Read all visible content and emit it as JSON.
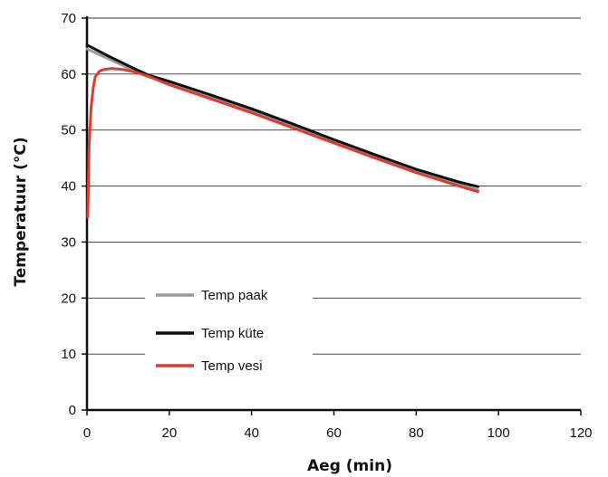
{
  "chart_data": {
    "type": "line",
    "xlabel": "Aeg (min)",
    "ylabel": "Temperatuur (°C)",
    "xlim": [
      0,
      120
    ],
    "ylim": [
      0,
      70
    ],
    "x_ticks": [
      "0",
      "20",
      "40",
      "60",
      "80",
      "100",
      "120"
    ],
    "y_ticks": [
      "0",
      "10",
      "20",
      "30",
      "40",
      "50",
      "60",
      "70"
    ],
    "grid": "horizontal",
    "legend": {
      "placement": "lower-left"
    },
    "series": [
      {
        "name": "Temp paak",
        "color": "#9a9a9a",
        "points": [
          [
            0,
            64.5
          ],
          [
            5,
            62.8
          ],
          [
            10,
            61.1
          ],
          [
            15,
            59.5
          ],
          [
            20,
            58.4
          ],
          [
            30,
            56.0
          ],
          [
            40,
            53.5
          ],
          [
            50,
            50.8
          ],
          [
            60,
            48.0
          ],
          [
            70,
            45.3
          ],
          [
            80,
            42.7
          ],
          [
            90,
            40.4
          ],
          [
            95,
            39.3
          ]
        ]
      },
      {
        "name": "Temp küte",
        "color": "#111111",
        "points": [
          [
            0,
            65.2
          ],
          [
            5,
            63.3
          ],
          [
            10,
            61.5
          ],
          [
            15,
            59.8
          ],
          [
            20,
            58.7
          ],
          [
            30,
            56.3
          ],
          [
            40,
            53.8
          ],
          [
            50,
            51.1
          ],
          [
            60,
            48.3
          ],
          [
            70,
            45.6
          ],
          [
            80,
            43.0
          ],
          [
            90,
            40.8
          ],
          [
            95,
            39.9
          ]
        ]
      },
      {
        "name": "Temp vesi",
        "color": "#e03a2f",
        "points": [
          [
            0.2,
            34.5
          ],
          [
            0.5,
            47.0
          ],
          [
            1.0,
            54.0
          ],
          [
            1.5,
            57.5
          ],
          [
            2.0,
            59.5
          ],
          [
            3.0,
            60.5
          ],
          [
            4.0,
            60.8
          ],
          [
            6.0,
            61.0
          ],
          [
            9.0,
            60.8
          ],
          [
            12.0,
            60.3
          ],
          [
            15.0,
            59.6
          ],
          [
            20.0,
            58.1
          ],
          [
            30.0,
            55.6
          ],
          [
            40.0,
            53.1
          ],
          [
            50.0,
            50.4
          ],
          [
            60.0,
            47.7
          ],
          [
            70.0,
            45.0
          ],
          [
            80.0,
            42.4
          ],
          [
            90.0,
            40.1
          ],
          [
            95.0,
            39.0
          ]
        ]
      }
    ]
  }
}
